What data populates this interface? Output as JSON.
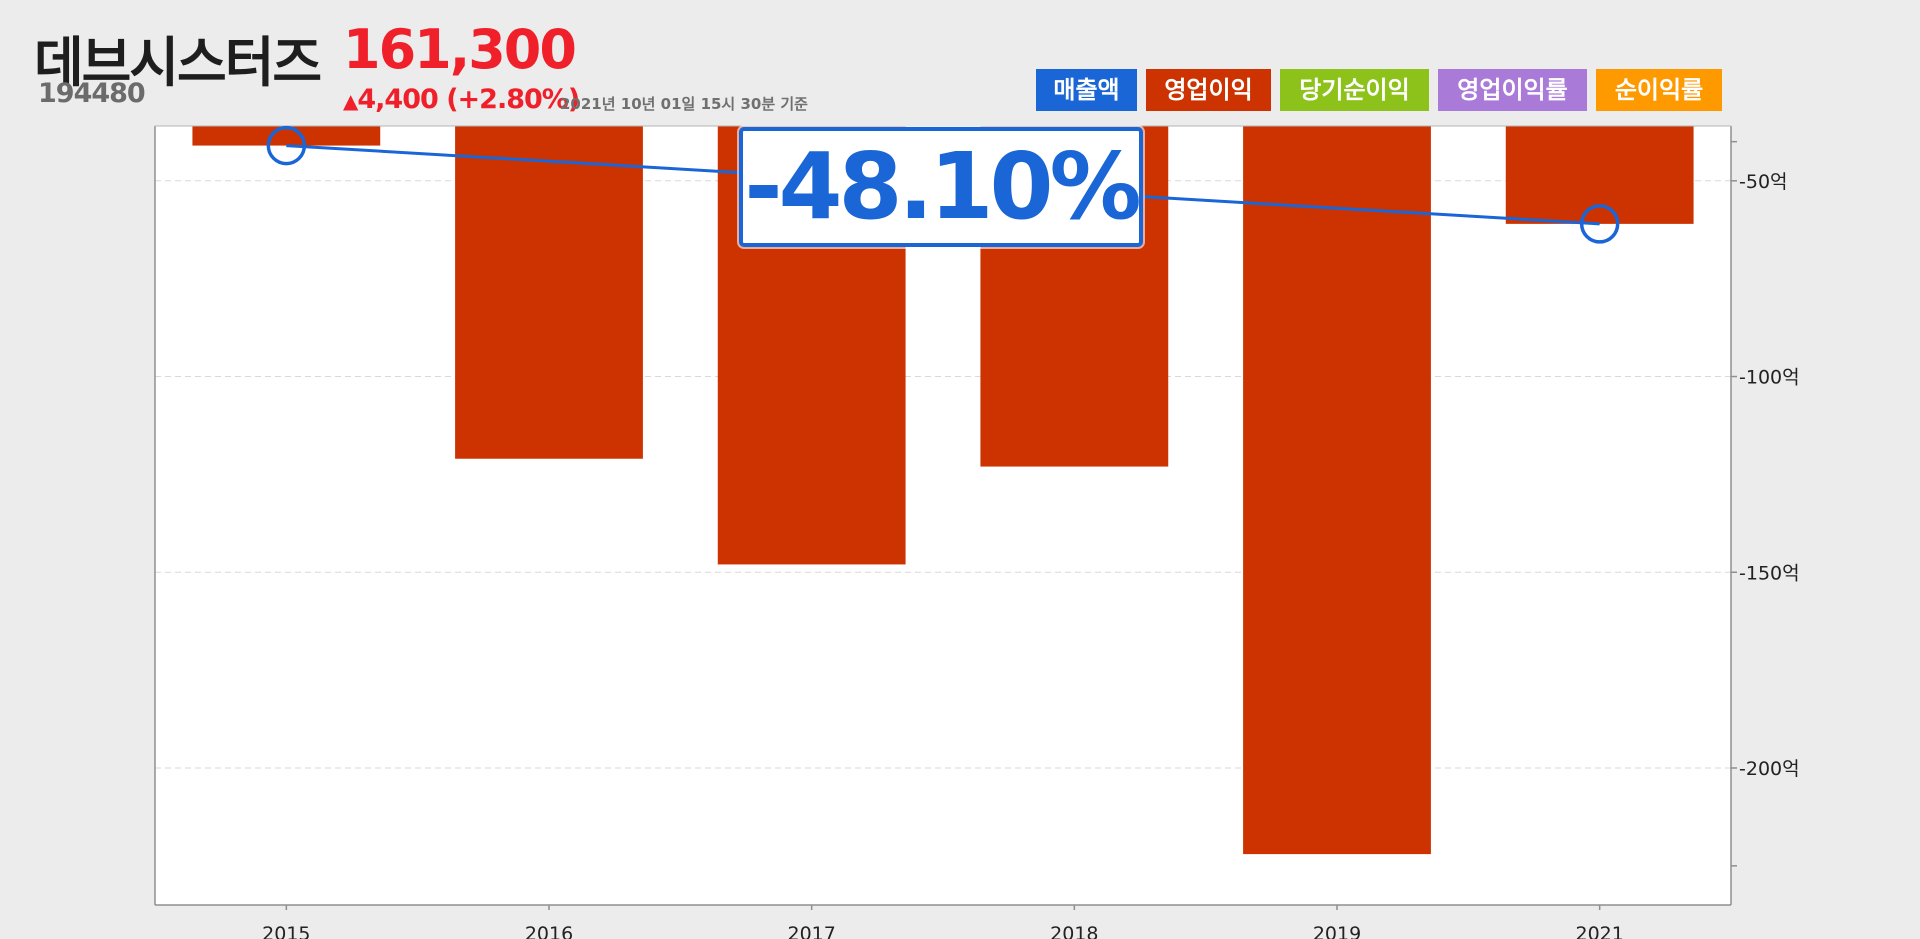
{
  "header": {
    "company_name": "데브시스터즈",
    "stock_code": "194480",
    "price": "161,300",
    "change_arrow": "▲",
    "change": "4,400 (+2.80%)",
    "timestamp": "2021년 10년 01일 15시 30분 기준"
  },
  "legend": [
    {
      "label": "매출액",
      "color": "#1a66d6"
    },
    {
      "label": "영업이익",
      "color": "#cc3300"
    },
    {
      "label": "당기순이익",
      "color": "#8cc21a"
    },
    {
      "label": "영업이익률",
      "color": "#a97ad8"
    },
    {
      "label": "순이익률",
      "color": "#ff9900"
    }
  ],
  "callout": {
    "value": "-48.10%"
  },
  "chart_data": {
    "type": "bar",
    "title": "",
    "xlabel": "",
    "ylabel": "",
    "categories": [
      "2015",
      "2016",
      "2017",
      "2018",
      "2019",
      "2021"
    ],
    "series": [
      {
        "name": "영업이익",
        "unit": "억",
        "color": "#cc3300",
        "values": [
          -41,
          -121,
          -148,
          -123,
          -222,
          -61
        ]
      },
      {
        "name": "line",
        "color": "#1a66d6",
        "values": [
          -41,
          null,
          null,
          null,
          null,
          -61
        ],
        "markers": [
          "2015",
          "2021"
        ]
      }
    ],
    "y_ticks": [
      {
        "value": -50,
        "label": "-50억"
      },
      {
        "value": -100,
        "label": "-100억"
      },
      {
        "value": -150,
        "label": "-150억"
      },
      {
        "value": -200,
        "label": "-200억"
      }
    ],
    "ylim": [
      -235,
      -36
    ],
    "grid": true,
    "axis_position": "right"
  }
}
